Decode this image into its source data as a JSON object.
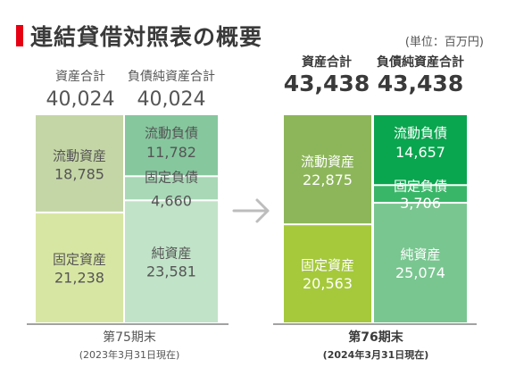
{
  "title": "連結貸借対照表の概要",
  "unit": "(単位：百万円)",
  "colors": {
    "accent": "#e60012",
    "prev_current_assets": "#c5d6a6",
    "prev_fixed_assets": "#d8e6a4",
    "prev_current_liab": "#86c79e",
    "prev_fixed_liab": "#a8d8b6",
    "prev_net_assets": "#c1e3c8",
    "cur_current_assets": "#8db65a",
    "cur_fixed_assets": "#a5c93b",
    "cur_current_liab": "#0aa54f",
    "cur_fixed_liab": "#3ab669",
    "cur_net_assets": "#79c690",
    "arrow": "#bdbdbd",
    "axis": "#6b6b6b"
  },
  "chart_data": {
    "type": "bar",
    "title": "連結貸借対照表の概要",
    "unit": "百万円",
    "arrow_icon": "right-arrow-icon",
    "periods": [
      {
        "label": "第75期末",
        "sublabel": "(2023年3月31日現在)",
        "total_assets_label": "資産合計",
        "total_assets": "40,024",
        "total_liab_label": "負債純資産合計",
        "total_liab": "40,024",
        "assets": [
          {
            "name": "流動資産",
            "value": 18785,
            "display": "18,785",
            "color": "#c5d6a6"
          },
          {
            "name": "固定資産",
            "value": 21238,
            "display": "21,238",
            "color": "#d8e6a4"
          }
        ],
        "liabilities": [
          {
            "name": "流動負債",
            "value": 11782,
            "display": "11,782",
            "color": "#86c79e"
          },
          {
            "name": "固定負債",
            "value": 4660,
            "display": "4,660",
            "color": "#a8d8b6"
          },
          {
            "name": "純資産",
            "value": 23581,
            "display": "23,581",
            "color": "#c1e3c8"
          }
        ]
      },
      {
        "label": "第76期末",
        "sublabel": "(2024年3月31日現在)",
        "total_assets_label": "資産合計",
        "total_assets": "43,438",
        "total_liab_label": "負債純資産合計",
        "total_liab": "43,438",
        "assets": [
          {
            "name": "流動資産",
            "value": 22875,
            "display": "22,875",
            "color": "#8db65a"
          },
          {
            "name": "固定資産",
            "value": 20563,
            "display": "20,563",
            "color": "#a5c93b"
          }
        ],
        "liabilities": [
          {
            "name": "流動負債",
            "value": 14657,
            "display": "14,657",
            "color": "#0aa54f"
          },
          {
            "name": "固定負債",
            "value": 3706,
            "display": "3,706",
            "color": "#3ab669"
          },
          {
            "name": "純資産",
            "value": 25074,
            "display": "25,074",
            "color": "#79c690"
          }
        ]
      }
    ]
  }
}
